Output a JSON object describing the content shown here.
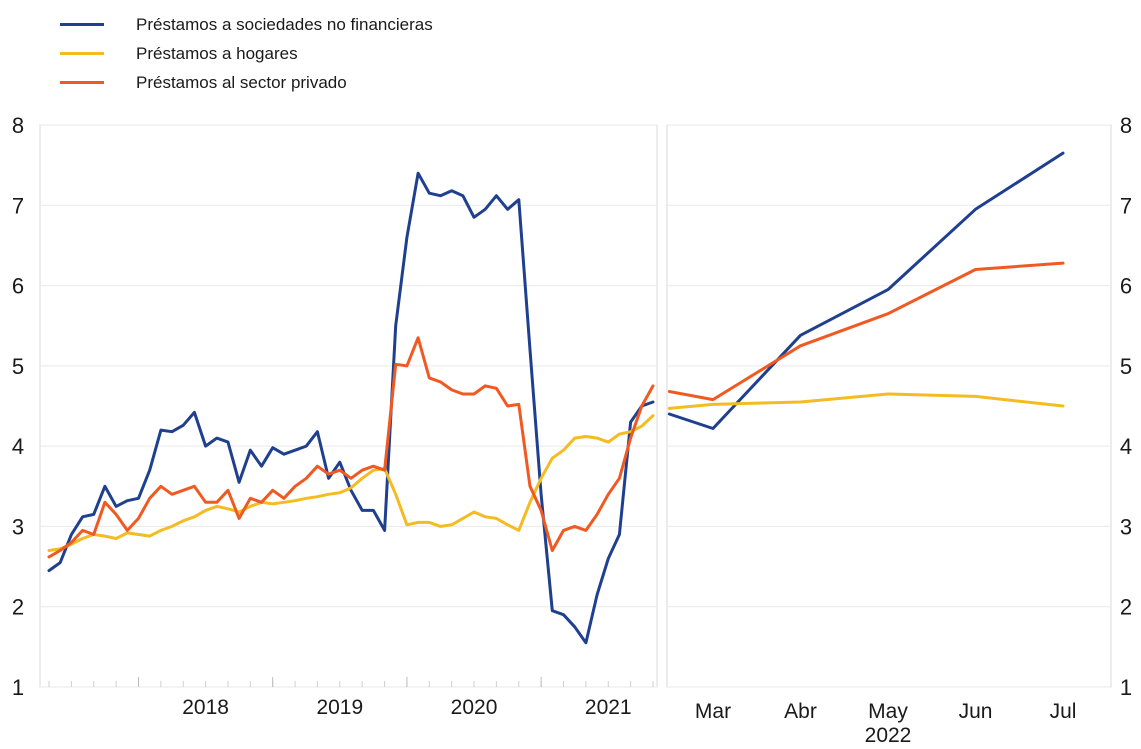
{
  "chart_data": [
    {
      "type": "line",
      "panel": "left",
      "title": "",
      "xlabel": "",
      "ylabel": "",
      "ylim": [
        1,
        8
      ],
      "yticks": [
        "1",
        "2",
        "3",
        "4",
        "5",
        "6",
        "7",
        "8"
      ],
      "grid": true,
      "x_start": "2017-05",
      "xtick_labels": [
        "2018",
        "2019",
        "2020",
        "2021"
      ],
      "series": [
        {
          "name": "Préstamos a sociedades no financieras",
          "color": "#1f3f8f",
          "values": [
            2.45,
            2.55,
            2.9,
            3.12,
            3.15,
            3.5,
            3.25,
            3.32,
            3.35,
            3.7,
            4.2,
            4.18,
            4.26,
            4.42,
            4.0,
            4.1,
            4.05,
            3.55,
            3.95,
            3.75,
            3.98,
            3.9,
            3.95,
            4.0,
            4.18,
            3.6,
            3.8,
            3.45,
            3.2,
            3.2,
            2.95,
            5.5,
            6.6,
            7.4,
            7.15,
            7.12,
            7.18,
            7.12,
            6.85,
            6.95,
            7.12,
            6.95,
            7.07,
            5.2,
            3.4,
            1.95,
            1.9,
            1.75,
            1.55,
            2.15,
            2.6,
            2.9,
            4.3,
            4.5,
            4.55
          ]
        },
        {
          "name": "Préstamos a hogares",
          "color": "#f4bb22",
          "values": [
            2.7,
            2.72,
            2.78,
            2.85,
            2.9,
            2.88,
            2.85,
            2.92,
            2.9,
            2.88,
            2.95,
            3.0,
            3.07,
            3.12,
            3.2,
            3.25,
            3.22,
            3.18,
            3.25,
            3.3,
            3.28,
            3.3,
            3.32,
            3.35,
            3.37,
            3.4,
            3.42,
            3.48,
            3.6,
            3.7,
            3.72,
            3.4,
            3.02,
            3.05,
            3.05,
            3.0,
            3.02,
            3.1,
            3.18,
            3.12,
            3.1,
            3.02,
            2.95,
            3.3,
            3.6,
            3.85,
            3.95,
            4.1,
            4.12,
            4.1,
            4.05,
            4.15,
            4.18,
            4.25,
            4.38
          ]
        },
        {
          "name": "Préstamos al sector privado",
          "color": "#f05a22",
          "values": [
            2.62,
            2.7,
            2.8,
            2.95,
            2.9,
            3.3,
            3.15,
            2.95,
            3.1,
            3.35,
            3.5,
            3.4,
            3.45,
            3.5,
            3.3,
            3.3,
            3.45,
            3.1,
            3.35,
            3.3,
            3.45,
            3.35,
            3.5,
            3.6,
            3.75,
            3.65,
            3.7,
            3.6,
            3.7,
            3.75,
            3.7,
            5.02,
            5.0,
            5.35,
            4.85,
            4.8,
            4.7,
            4.65,
            4.65,
            4.75,
            4.72,
            4.5,
            4.52,
            3.5,
            3.2,
            2.7,
            2.95,
            3.0,
            2.95,
            3.15,
            3.4,
            3.6,
            4.1,
            4.5,
            4.75
          ]
        }
      ]
    },
    {
      "type": "line",
      "panel": "right",
      "title": "",
      "xlabel": "",
      "ylabel": "",
      "ylim": [
        1,
        8
      ],
      "yticks": [
        "1",
        "2",
        "3",
        "4",
        "5",
        "6",
        "7",
        "8"
      ],
      "grid": true,
      "categories": [
        "Mar",
        "Abr",
        "May",
        "Jun",
        "Jul"
      ],
      "year_label": "2022",
      "series": [
        {
          "name": "Préstamos a sociedades no financieras",
          "color": "#1f3f8f",
          "x": [
            -0.5,
            0,
            1,
            2,
            3,
            4
          ],
          "values": [
            4.4,
            4.22,
            5.38,
            5.95,
            6.95,
            7.65
          ]
        },
        {
          "name": "Préstamos a hogares",
          "color": "#f4bb22",
          "x": [
            -0.5,
            0,
            1,
            2,
            3,
            4
          ],
          "values": [
            4.47,
            4.52,
            4.55,
            4.65,
            4.62,
            4.5
          ]
        },
        {
          "name": "Préstamos al sector privado",
          "color": "#f05a22",
          "x": [
            -0.5,
            0,
            1,
            2,
            3,
            4
          ],
          "values": [
            4.68,
            4.58,
            5.25,
            5.65,
            6.2,
            6.28
          ]
        }
      ]
    }
  ]
}
